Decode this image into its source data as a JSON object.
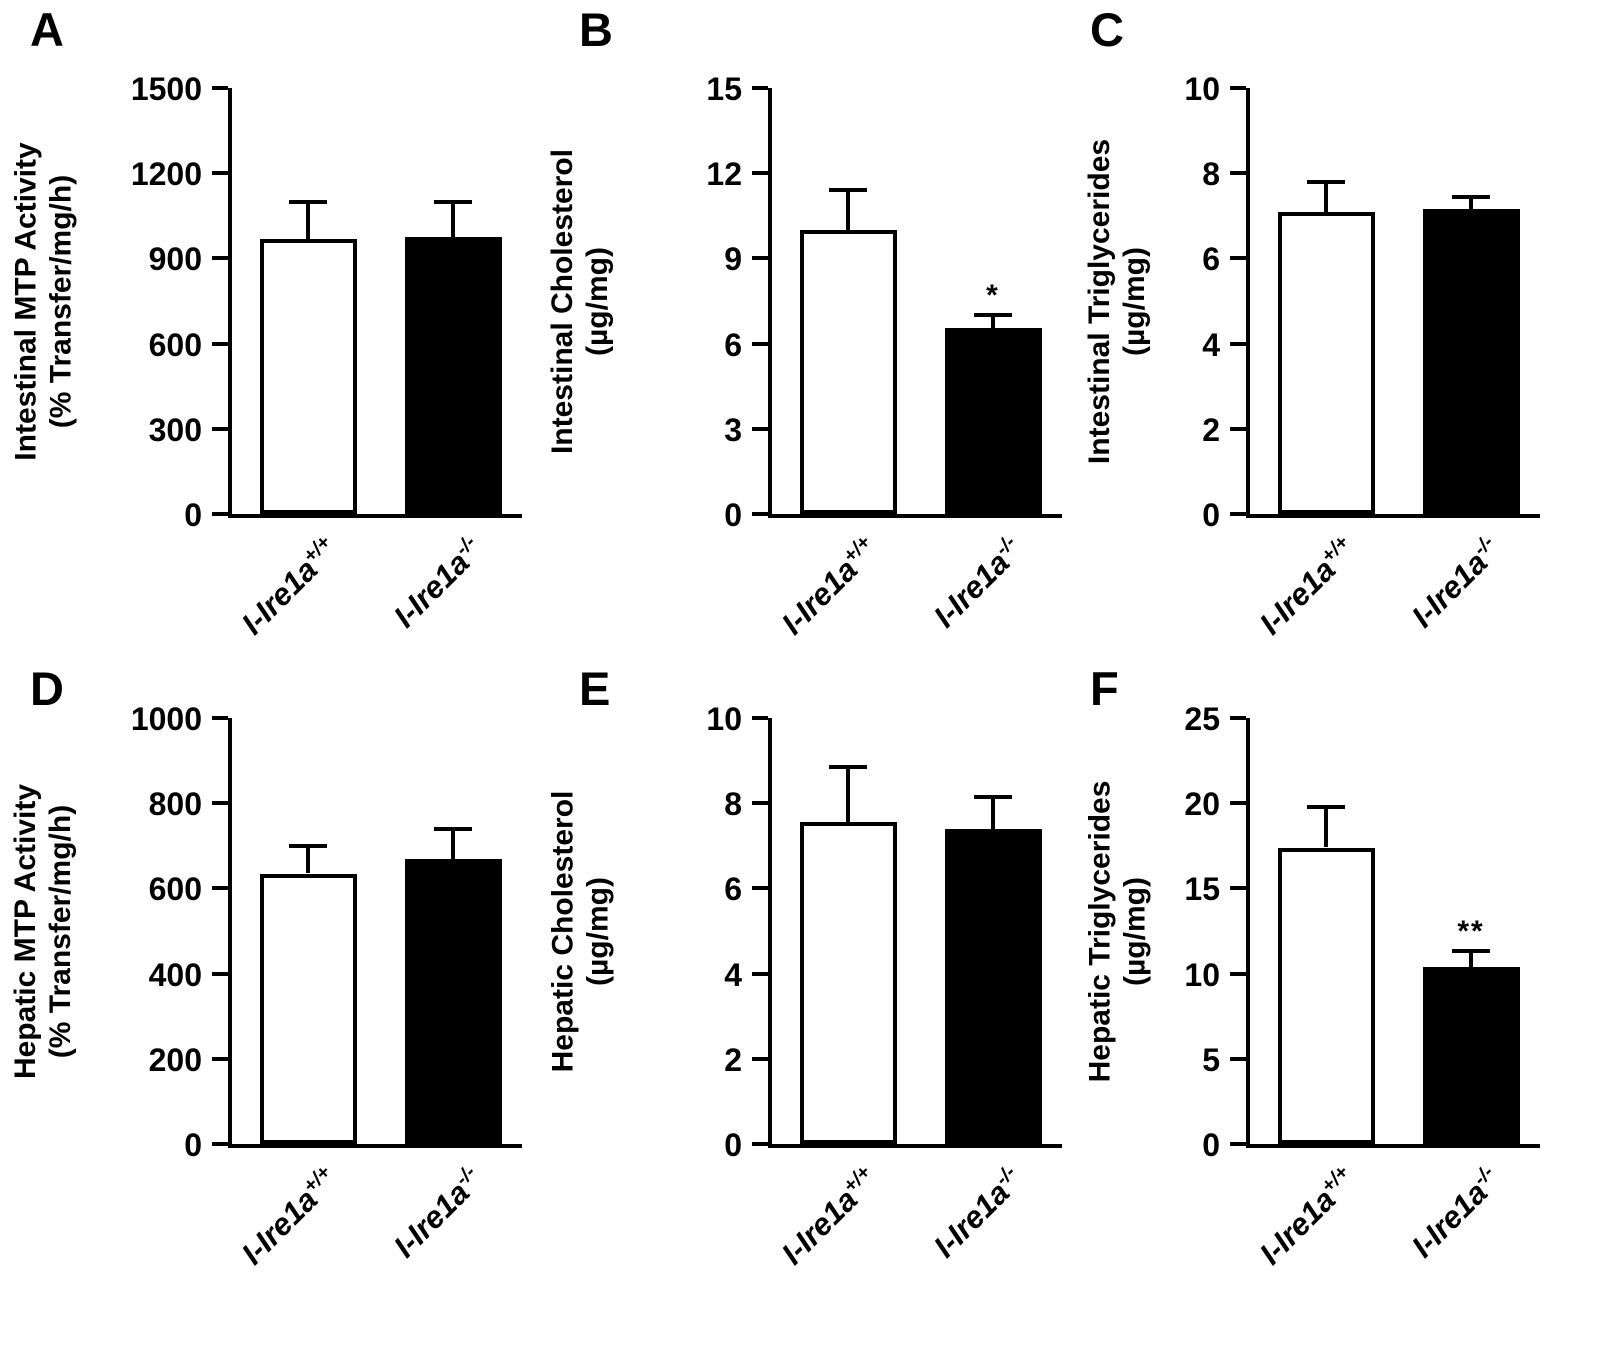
{
  "figure": {
    "background": "#ffffff",
    "text_color": "#000000",
    "grid": false,
    "legend_position": "none"
  },
  "chart_data": [
    {
      "panel": "A",
      "type": "bar",
      "title": "",
      "ylabel": [
        "Intestinal MTP Activity",
        "(% Transfer/mg/h)"
      ],
      "categories": [
        {
          "base": "I-Ire1a",
          "sup": "+/+"
        },
        {
          "base": "I-Ire1a",
          "sup": "-/-"
        }
      ],
      "values": [
        970,
        975
      ],
      "errors": [
        130,
        125
      ],
      "significance": [
        "",
        ""
      ],
      "bar_colors": [
        "#ffffff",
        "#000000"
      ],
      "ylim": [
        0,
        1500
      ],
      "yticks": [
        "0",
        "300",
        "600",
        "900",
        "1200",
        "1500"
      ],
      "grid": false
    },
    {
      "panel": "B",
      "type": "bar",
      "title": "",
      "ylabel": [
        "Intestinal Cholesterol",
        "(µg/mg)"
      ],
      "categories": [
        {
          "base": "I-Ire1a",
          "sup": "+/+"
        },
        {
          "base": "I-Ire1a",
          "sup": "-/-"
        }
      ],
      "values": [
        10.0,
        6.55
      ],
      "errors": [
        1.4,
        0.45
      ],
      "significance": [
        "",
        "*"
      ],
      "bar_colors": [
        "#ffffff",
        "#000000"
      ],
      "ylim": [
        0,
        15
      ],
      "yticks": [
        "0",
        "3",
        "6",
        "9",
        "12",
        "15"
      ],
      "grid": false
    },
    {
      "panel": "C",
      "type": "bar",
      "title": "",
      "ylabel": [
        "Intestinal Triglycerides",
        "(µg/mg)"
      ],
      "categories": [
        {
          "base": "I-Ire1a",
          "sup": "+/+"
        },
        {
          "base": "I-Ire1a",
          "sup": "-/-"
        }
      ],
      "values": [
        7.1,
        7.15
      ],
      "errors": [
        0.7,
        0.3
      ],
      "significance": [
        "",
        ""
      ],
      "bar_colors": [
        "#ffffff",
        "#000000"
      ],
      "ylim": [
        0,
        10
      ],
      "yticks": [
        "0",
        "2",
        "4",
        "6",
        "8",
        "10"
      ],
      "grid": false
    },
    {
      "panel": "D",
      "type": "bar",
      "title": "",
      "ylabel": [
        "Hepatic MTP Activity",
        "(% Transfer/mg/h)"
      ],
      "categories": [
        {
          "base": "I-Ire1a",
          "sup": "+/+"
        },
        {
          "base": "I-Ire1a",
          "sup": "-/-"
        }
      ],
      "values": [
        635,
        670
      ],
      "errors": [
        65,
        70
      ],
      "significance": [
        "",
        ""
      ],
      "bar_colors": [
        "#ffffff",
        "#000000"
      ],
      "ylim": [
        0,
        1000
      ],
      "yticks": [
        "0",
        "200",
        "400",
        "600",
        "800",
        "1000"
      ],
      "grid": false
    },
    {
      "panel": "E",
      "type": "bar",
      "title": "",
      "ylabel": [
        "Hepatic Cholesterol",
        "(µg/mg)"
      ],
      "categories": [
        {
          "base": "I-Ire1a",
          "sup": "+/+"
        },
        {
          "base": "I-Ire1a",
          "sup": "-/-"
        }
      ],
      "values": [
        7.55,
        7.4
      ],
      "errors": [
        1.3,
        0.75
      ],
      "significance": [
        "",
        ""
      ],
      "bar_colors": [
        "#ffffff",
        "#000000"
      ],
      "ylim": [
        0,
        10
      ],
      "yticks": [
        "0",
        "2",
        "4",
        "6",
        "8",
        "10"
      ],
      "grid": false
    },
    {
      "panel": "F",
      "type": "bar",
      "title": "",
      "ylabel": [
        "Hepatic Triglycerides",
        "(µg/mg)"
      ],
      "categories": [
        {
          "base": "I-Ire1a",
          "sup": "+/+"
        },
        {
          "base": "I-Ire1a",
          "sup": "-/-"
        }
      ],
      "values": [
        17.4,
        10.4
      ],
      "errors": [
        2.4,
        0.9
      ],
      "significance": [
        "",
        "**"
      ],
      "bar_colors": [
        "#ffffff",
        "#000000"
      ],
      "ylim": [
        0,
        25
      ],
      "yticks": [
        "0",
        "5",
        "10",
        "15",
        "20",
        "25"
      ],
      "grid": false
    }
  ]
}
